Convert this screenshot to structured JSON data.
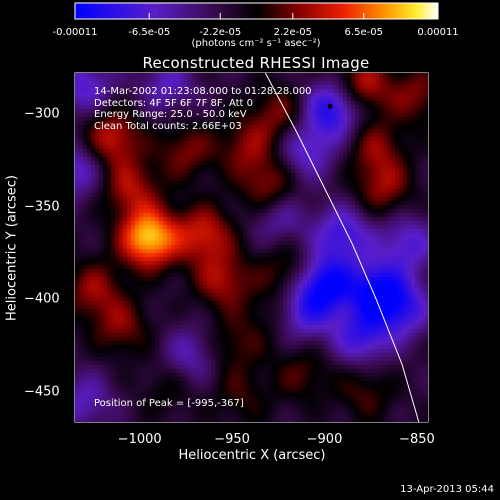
{
  "title": "Reconstructed RHESSI Image",
  "info_lines": [
    "14-Mar-2002 01:23:08.000 to 01:28:28.000",
    "Detectors: 4F 5F 6F 7F 8F, Att 0",
    "Energy Range: 25.0 - 50.0 keV",
    "Clean    Total counts: 2.66E+03"
  ],
  "peak_label": "Position of Peak = [-995,-367]",
  "date_stamp": "13-Apr-2013 05:44",
  "colorbar": {
    "range": [
      -0.00011,
      0.00011
    ],
    "tick_labels": [
      "-0.00011",
      "-6.5e-05",
      "-2.2e-05",
      "2.2e-05",
      "6.5e-05",
      "0.00011"
    ],
    "unit_label": "(photons cm⁻² s⁻¹ asec⁻²)"
  },
  "chart_data": {
    "type": "heatmap",
    "title": "Reconstructed RHESSI Image",
    "xlabel": "Heliocentric X (arcsec)",
    "ylabel": "Heliocentric Y (arcsec)",
    "xlim": [
      -1035,
      -844
    ],
    "ylim": [
      -466,
      -278
    ],
    "xticks": [
      -1000,
      -950,
      -900,
      -850
    ],
    "xtick_labels": [
      "−1000",
      "−950",
      "−900",
      "−850"
    ],
    "yticks": [
      -300,
      -350,
      -400,
      -450
    ],
    "ytick_labels": [
      "−300",
      "−350",
      "−400",
      "−450"
    ],
    "zlim": [
      -0.00011,
      0.00011
    ],
    "colormap": "blue-purple-red-yellow-white",
    "peak": [
      -995,
      -367
    ],
    "limb_curve": [
      [
        -932,
        -278
      ],
      [
        -915,
        -310
      ],
      [
        -900,
        -340
      ],
      [
        -885,
        -370
      ],
      [
        -872,
        -400
      ],
      [
        -858,
        -435
      ],
      [
        -849,
        -466
      ]
    ],
    "sources": [
      {
        "x": -995,
        "y": -367,
        "intensity": 0.00011
      },
      {
        "x": -1015,
        "y": -313,
        "intensity": 6e-05
      },
      {
        "x": -1005,
        "y": -340,
        "intensity": 5e-05
      },
      {
        "x": -975,
        "y": -320,
        "intensity": 4e-05
      },
      {
        "x": -965,
        "y": -365,
        "intensity": 6e-05
      },
      {
        "x": -955,
        "y": -390,
        "intensity": 5e-05
      },
      {
        "x": -1025,
        "y": -395,
        "intensity": 4.5e-05
      },
      {
        "x": -1010,
        "y": -415,
        "intensity": 4e-05
      },
      {
        "x": -930,
        "y": -340,
        "intensity": 5e-05
      },
      {
        "x": -942,
        "y": -318,
        "intensity": 4e-05
      },
      {
        "x": -925,
        "y": -300,
        "intensity": 4e-05
      },
      {
        "x": -920,
        "y": -385,
        "intensity": 3.5e-05
      },
      {
        "x": -950,
        "y": -425,
        "intensity": 3e-05
      },
      {
        "x": -945,
        "y": -452,
        "intensity": 2.5e-05
      },
      {
        "x": -912,
        "y": -440,
        "intensity": 3e-05
      },
      {
        "x": -880,
        "y": -285,
        "intensity": 6e-05
      },
      {
        "x": -868,
        "y": -340,
        "intensity": 4.5e-05
      },
      {
        "x": -872,
        "y": -318,
        "intensity": 4e-05
      },
      {
        "x": -878,
        "y": -450,
        "intensity": 3e-05
      },
      {
        "x": -850,
        "y": -290,
        "intensity": 4e-05
      },
      {
        "x": -930,
        "y": -410,
        "intensity": 2e-05
      },
      {
        "x": -985,
        "y": -448,
        "intensity": 2e-05
      },
      {
        "x": -895,
        "y": -297,
        "intensity": -8e-05
      },
      {
        "x": -900,
        "y": -392,
        "intensity": -9e-05
      },
      {
        "x": -872,
        "y": -395,
        "intensity": -8e-05
      },
      {
        "x": -890,
        "y": -365,
        "intensity": -6e-05
      },
      {
        "x": -880,
        "y": -420,
        "intensity": -6e-05
      },
      {
        "x": -858,
        "y": -405,
        "intensity": -6e-05
      },
      {
        "x": -912,
        "y": -408,
        "intensity": -5e-05
      },
      {
        "x": -1030,
        "y": -285,
        "intensity": -5e-05
      },
      {
        "x": -1035,
        "y": -330,
        "intensity": -5e-05
      },
      {
        "x": -1030,
        "y": -455,
        "intensity": -4e-05
      },
      {
        "x": -985,
        "y": -285,
        "intensity": -4e-05
      },
      {
        "x": -925,
        "y": -355,
        "intensity": -4e-05
      },
      {
        "x": -855,
        "y": -370,
        "intensity": -5e-05
      },
      {
        "x": -972,
        "y": -430,
        "intensity": -4e-05
      },
      {
        "x": -910,
        "y": -320,
        "intensity": -5e-05
      }
    ]
  }
}
